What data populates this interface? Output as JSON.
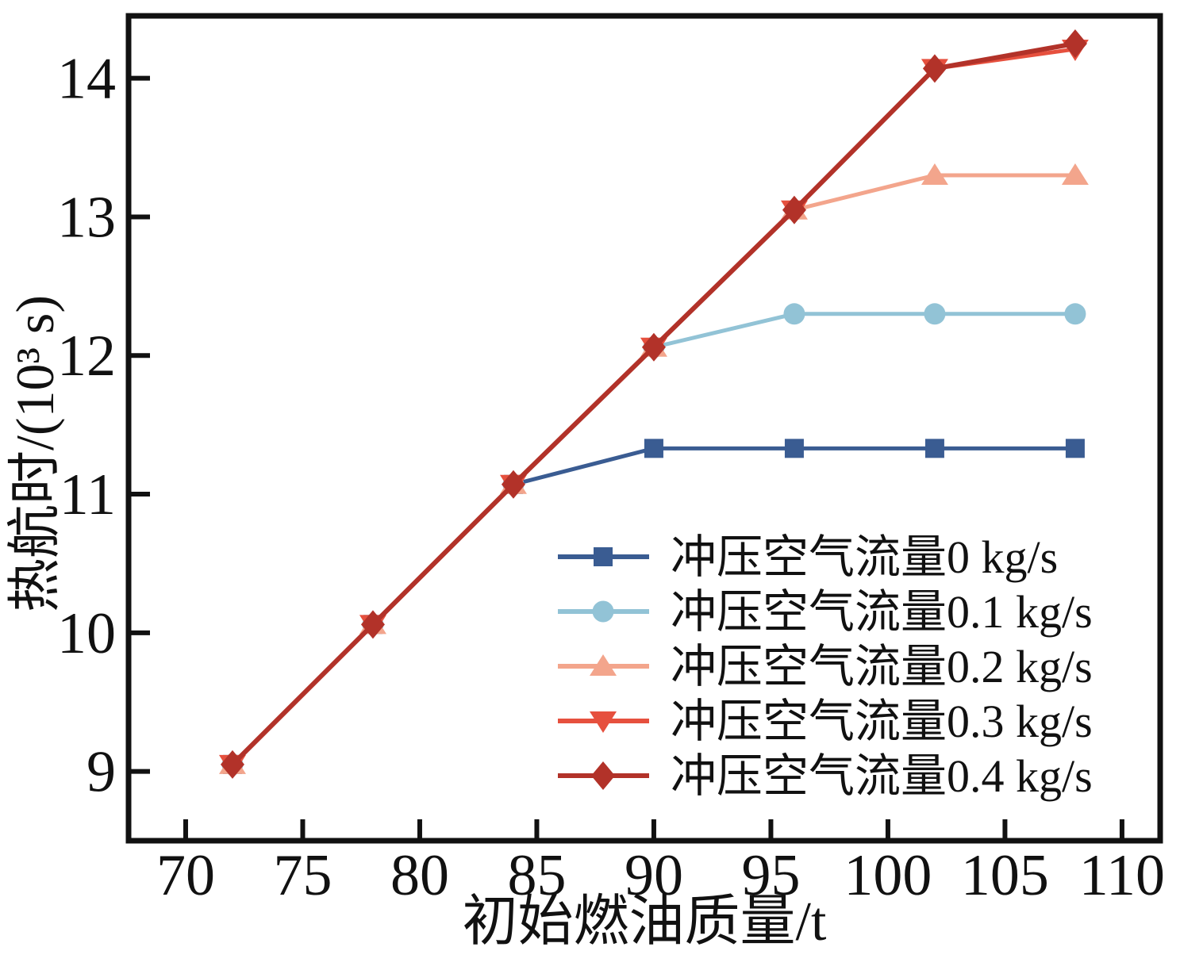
{
  "chart_data": {
    "type": "line",
    "title": "",
    "xlabel": "初始燃油质量/t",
    "ylabel": "热航时/(10³ s)",
    "xlim": [
      67.56,
      111.63
    ],
    "ylim": [
      8.5,
      14.45
    ],
    "xticks": [
      70,
      75,
      80,
      85,
      90,
      95,
      100,
      105,
      110
    ],
    "yticks": [
      9,
      10,
      11,
      12,
      13,
      14
    ],
    "grid": false,
    "legend_position": "inside lower right",
    "axis_color": "#111111",
    "background": "#ffffff",
    "x": [
      72,
      78,
      84,
      90,
      96,
      102,
      108
    ],
    "series": [
      {
        "name": "冲压空气流量0 kg/s",
        "marker": "square",
        "color": "#3a5c92",
        "values": [
          9.05,
          10.06,
          11.07,
          11.33,
          11.33,
          11.33,
          11.33
        ]
      },
      {
        "name": "冲压空气流量0.1 kg/s",
        "marker": "circle",
        "color": "#92c3d6",
        "values": [
          9.05,
          10.06,
          11.07,
          12.06,
          12.3,
          12.3,
          12.3
        ]
      },
      {
        "name": "冲压空气流量0.2 kg/s",
        "marker": "triangle-up",
        "color": "#f3a58c",
        "values": [
          9.05,
          10.06,
          11.07,
          12.06,
          13.05,
          13.3,
          13.3
        ]
      },
      {
        "name": "冲压空气流量0.3 kg/s",
        "marker": "triangle-down",
        "color": "#e6503e",
        "values": [
          9.05,
          10.06,
          11.07,
          12.06,
          13.05,
          14.07,
          14.21
        ]
      },
      {
        "name": "冲压空气流量0.4 kg/s",
        "marker": "diamond",
        "color": "#b23229",
        "values": [
          9.05,
          10.06,
          11.07,
          12.06,
          13.05,
          14.07,
          14.25
        ]
      }
    ]
  }
}
